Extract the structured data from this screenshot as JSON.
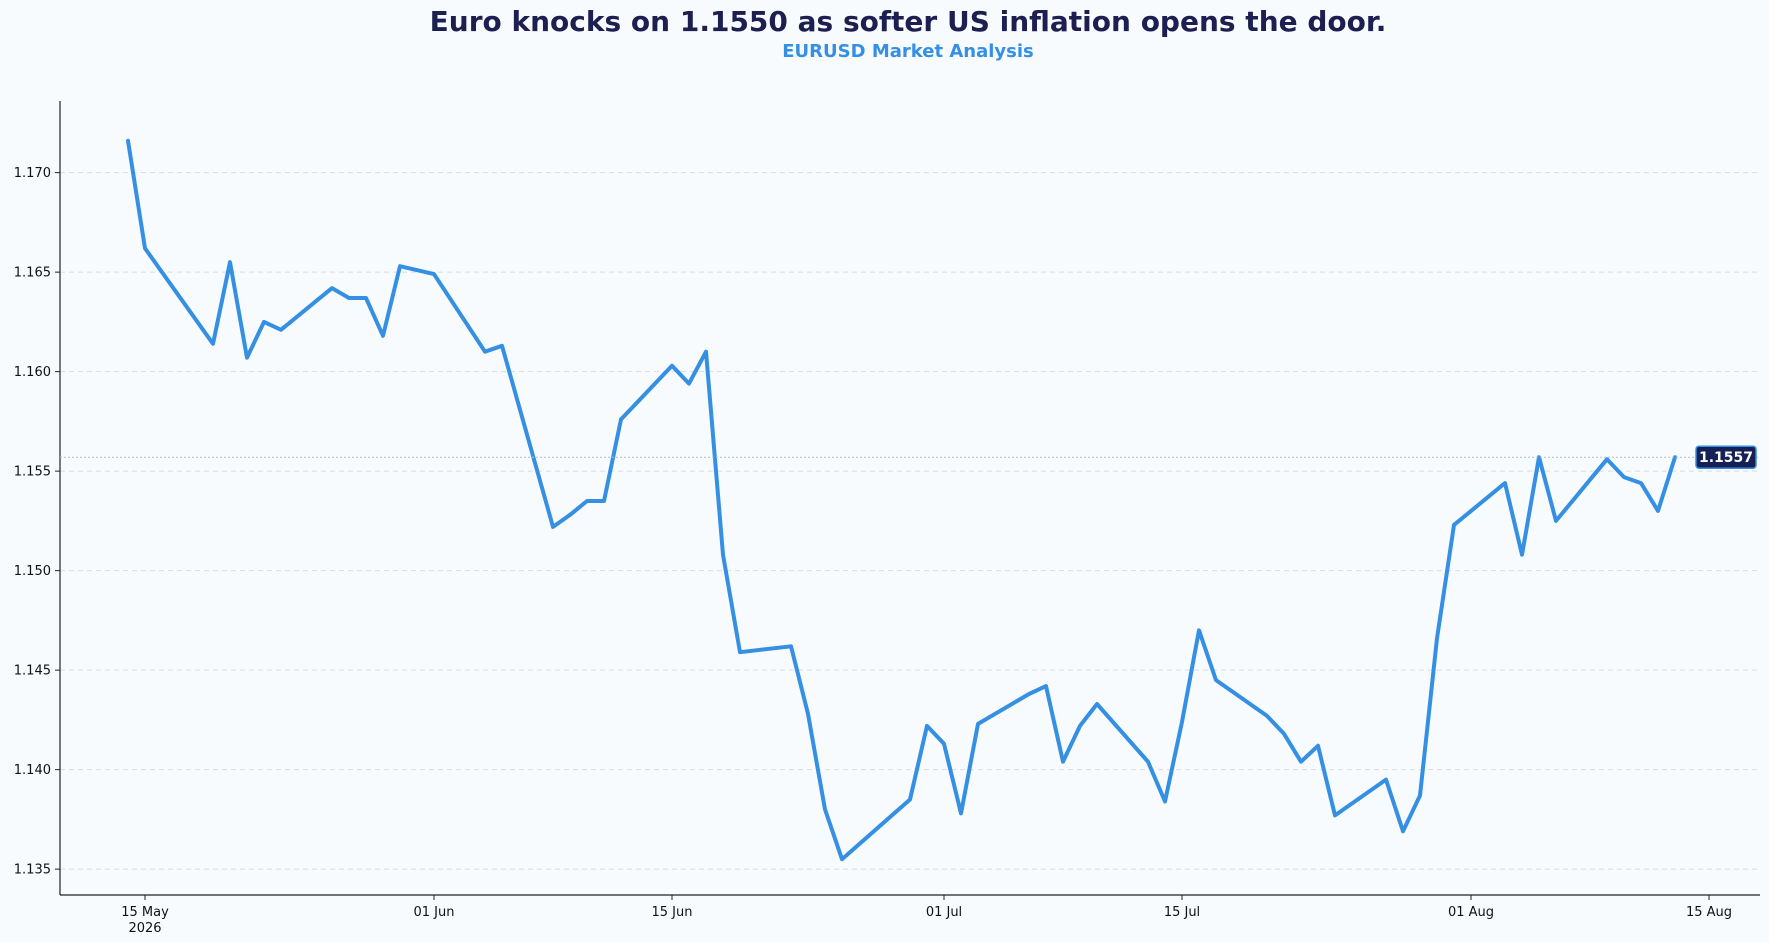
{
  "chart_data": {
    "type": "line",
    "title": "Euro knocks on 1.1550 as softer US inflation opens the door.",
    "subtitle": "EURUSD Market Analysis",
    "xlabel": "",
    "ylabel": "",
    "ylim": [
      1.1337,
      1.1736
    ],
    "xlim": [
      "2026-05-10",
      "2026-08-18"
    ],
    "grid": "horizontal-dashed",
    "y_ticks": [
      {
        "value": 1.135,
        "label": "1.135"
      },
      {
        "value": 1.14,
        "label": "1.140"
      },
      {
        "value": 1.145,
        "label": "1.145"
      },
      {
        "value": 1.15,
        "label": "1.150"
      },
      {
        "value": 1.155,
        "label": "1.155"
      },
      {
        "value": 1.16,
        "label": "1.160"
      },
      {
        "value": 1.165,
        "label": "1.165"
      },
      {
        "value": 1.17,
        "label": "1.170"
      }
    ],
    "x_ticks": [
      {
        "date": "2026-05-15",
        "label": "15 May",
        "sublabel": "2026"
      },
      {
        "date": "2026-06-01",
        "label": "01 Jun",
        "sublabel": ""
      },
      {
        "date": "2026-06-15",
        "label": "15 Jun",
        "sublabel": ""
      },
      {
        "date": "2026-07-01",
        "label": "01 Jul",
        "sublabel": ""
      },
      {
        "date": "2026-07-15",
        "label": "15 Jul",
        "sublabel": ""
      },
      {
        "date": "2026-08-01",
        "label": "01 Aug",
        "sublabel": ""
      },
      {
        "date": "2026-08-15",
        "label": "15 Aug",
        "sublabel": ""
      }
    ],
    "last_value_label": "1.1557",
    "colors": {
      "line": "#3590e3",
      "title": "#1c1f50",
      "subtitle": "#3590e3",
      "badge": "#152055",
      "badge_border": "#3590e3",
      "grid": "#d8dde4",
      "background": "#f7fbfd"
    },
    "series": [
      {
        "x": [
          "2026-05-14",
          "2026-05-15",
          "2026-05-19",
          "2026-05-20",
          "2026-05-21",
          "2026-05-22",
          "2026-05-23",
          "2026-05-26",
          "2026-05-27",
          "2026-05-28",
          "2026-05-29",
          "2026-05-30",
          "2026-06-01",
          "2026-06-04",
          "2026-06-05",
          "2026-06-08",
          "2026-06-09",
          "2026-06-10",
          "2026-06-11",
          "2026-06-12",
          "2026-06-15",
          "2026-06-16",
          "2026-06-17",
          "2026-06-18",
          "2026-06-19",
          "2026-06-22",
          "2026-06-23",
          "2026-06-24",
          "2026-06-25",
          "2026-06-29",
          "2026-06-30",
          "2026-07-01",
          "2026-07-02",
          "2026-07-03",
          "2026-07-06",
          "2026-07-07",
          "2026-07-08",
          "2026-07-09",
          "2026-07-10",
          "2026-07-13",
          "2026-07-14",
          "2026-07-15",
          "2026-07-16",
          "2026-07-17",
          "2026-07-20",
          "2026-07-21",
          "2026-07-22",
          "2026-07-23",
          "2026-07-24",
          "2026-07-27",
          "2026-07-28",
          "2026-07-29",
          "2026-07-30",
          "2026-07-31",
          "2026-08-03",
          "2026-08-04",
          "2026-08-05",
          "2026-08-06",
          "2026-08-09",
          "2026-08-10",
          "2026-08-11",
          "2026-08-12",
          "2026-08-13"
        ],
        "y": [
          1.1716,
          1.1662,
          1.1614,
          1.1655,
          1.1607,
          1.1625,
          1.1621,
          1.1642,
          1.1637,
          1.1637,
          1.1618,
          1.1653,
          1.1649,
          1.161,
          1.1613,
          1.1522,
          1.1528,
          1.1535,
          1.1535,
          1.1576,
          1.1603,
          1.1594,
          1.161,
          1.1508,
          1.1459,
          1.1462,
          1.1428,
          1.138,
          1.1355,
          1.1385,
          1.1422,
          1.1413,
          1.1378,
          1.1423,
          1.1438,
          1.1442,
          1.1404,
          1.1422,
          1.1433,
          1.1404,
          1.1384,
          1.1424,
          1.147,
          1.1445,
          1.1427,
          1.1418,
          1.1404,
          1.1412,
          1.1377,
          1.1395,
          1.1369,
          1.1387,
          1.1466,
          1.1523,
          1.1544,
          1.1508,
          1.1557,
          1.1525,
          1.1556,
          1.1547,
          1.1544,
          1.153,
          1.1557
        ]
      }
    ]
  }
}
